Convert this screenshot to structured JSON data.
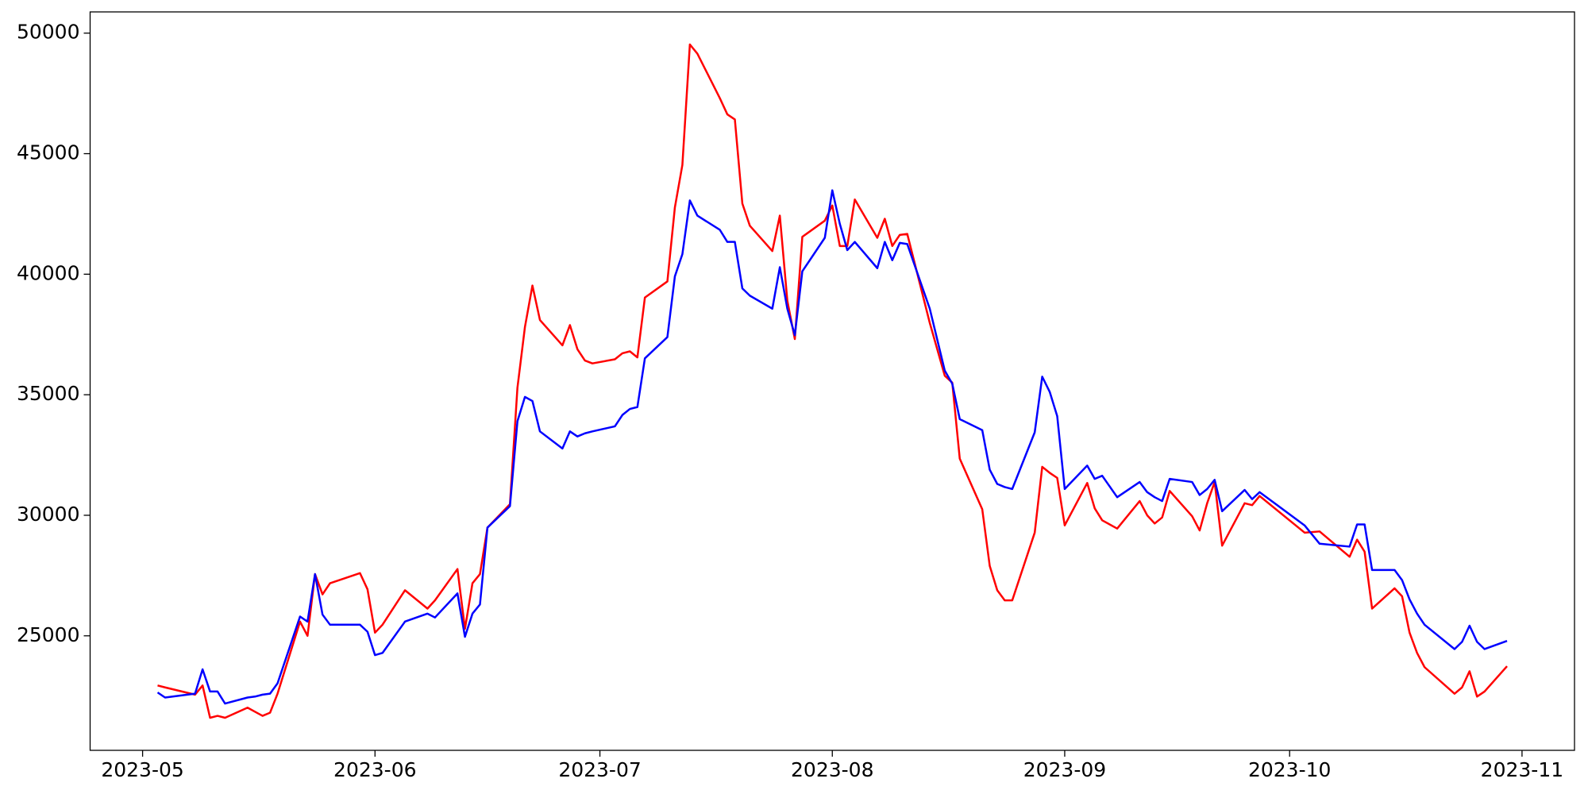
{
  "chart_data": {
    "type": "line",
    "x": [
      "2023-05-03",
      "2023-05-04",
      "2023-05-08",
      "2023-05-09",
      "2023-05-10",
      "2023-05-11",
      "2023-05-12",
      "2023-05-15",
      "2023-05-16",
      "2023-05-17",
      "2023-05-18",
      "2023-05-19",
      "2023-05-22",
      "2023-05-23",
      "2023-05-24",
      "2023-05-25",
      "2023-05-26",
      "2023-05-30",
      "2023-05-31",
      "2023-06-01",
      "2023-06-02",
      "2023-06-05",
      "2023-06-08",
      "2023-06-09",
      "2023-06-12",
      "2023-06-13",
      "2023-06-14",
      "2023-06-15",
      "2023-06-16",
      "2023-06-19",
      "2023-06-20",
      "2023-06-21",
      "2023-06-22",
      "2023-06-23",
      "2023-06-26",
      "2023-06-27",
      "2023-06-28",
      "2023-06-29",
      "2023-06-30",
      "2023-07-03",
      "2023-07-04",
      "2023-07-05",
      "2023-07-06",
      "2023-07-07",
      "2023-07-10",
      "2023-07-11",
      "2023-07-12",
      "2023-07-13",
      "2023-07-14",
      "2023-07-17",
      "2023-07-18",
      "2023-07-19",
      "2023-07-20",
      "2023-07-21",
      "2023-07-24",
      "2023-07-25",
      "2023-07-26",
      "2023-07-27",
      "2023-07-28",
      "2023-07-31",
      "2023-08-01",
      "2023-08-02",
      "2023-08-03",
      "2023-08-04",
      "2023-08-07",
      "2023-08-08",
      "2023-08-09",
      "2023-08-10",
      "2023-08-11",
      "2023-08-14",
      "2023-08-16",
      "2023-08-17",
      "2023-08-18",
      "2023-08-21",
      "2023-08-22",
      "2023-08-23",
      "2023-08-24",
      "2023-08-25",
      "2023-08-28",
      "2023-08-29",
      "2023-08-30",
      "2023-08-31",
      "2023-09-01",
      "2023-09-04",
      "2023-09-05",
      "2023-09-06",
      "2023-09-08",
      "2023-09-11",
      "2023-09-12",
      "2023-09-13",
      "2023-09-14",
      "2023-09-15",
      "2023-09-18",
      "2023-09-19",
      "2023-09-20",
      "2023-09-21",
      "2023-09-22",
      "2023-09-25",
      "2023-09-26",
      "2023-09-27",
      "2023-10-03",
      "2023-10-05",
      "2023-10-09",
      "2023-10-10",
      "2023-10-11",
      "2023-10-12",
      "2023-10-15",
      "2023-10-16",
      "2023-10-17",
      "2023-10-18",
      "2023-10-19",
      "2023-10-23",
      "2023-10-24",
      "2023-10-25",
      "2023-10-26",
      "2023-10-27",
      "2023-10-30"
    ],
    "series": [
      {
        "color": "#ff0000",
        "values": [
          22940,
          22860,
          22560,
          22940,
          21600,
          21680,
          21600,
          22020,
          21850,
          21680,
          21810,
          22600,
          25590,
          25000,
          27560,
          26720,
          27180,
          27600,
          26930,
          25130,
          25460,
          26890,
          26130,
          26470,
          27770,
          25290,
          27180,
          27560,
          29490,
          30460,
          35290,
          37810,
          39530,
          38100,
          37050,
          37890,
          36890,
          36420,
          36300,
          36470,
          36720,
          36800,
          36550,
          39030,
          39700,
          42770,
          44530,
          49530,
          49150,
          47300,
          46630,
          46420,
          42930,
          42010,
          40960,
          42430,
          38900,
          37310,
          41550,
          42220,
          42850,
          41170,
          41170,
          43100,
          41510,
          42300,
          41170,
          41630,
          41670,
          37980,
          35790,
          35500,
          32350,
          30250,
          27900,
          26890,
          26470,
          26470,
          29280,
          32010,
          31760,
          31550,
          29580,
          31340,
          30290,
          29790,
          29450,
          30590,
          30000,
          29660,
          29910,
          31010,
          29960,
          29370,
          30500,
          31380,
          28740,
          30500,
          30420,
          30800,
          29280,
          29330,
          28280,
          28990,
          28490,
          26130,
          26970,
          26640,
          25130,
          24290,
          23700,
          22600,
          22860,
          23530,
          22480,
          22690,
          23740
        ]
      },
      {
        "color": "#0000ff",
        "values": [
          22650,
          22440,
          22600,
          23610,
          22690,
          22690,
          22190,
          22440,
          22480,
          22560,
          22600,
          23030,
          25800,
          25590,
          27560,
          25880,
          25460,
          25460,
          25170,
          24200,
          24290,
          25590,
          25920,
          25760,
          26760,
          24960,
          25920,
          26300,
          29490,
          30380,
          33900,
          34910,
          34740,
          33480,
          32770,
          33480,
          33270,
          33400,
          33480,
          33690,
          34160,
          34410,
          34490,
          36510,
          37390,
          39910,
          40830,
          43060,
          42430,
          41840,
          41340,
          41340,
          39410,
          39110,
          38570,
          40290,
          38570,
          37470,
          40120,
          41510,
          43480,
          42090,
          41000,
          41340,
          40250,
          41340,
          40580,
          41300,
          41250,
          38570,
          36000,
          35460,
          33990,
          33530,
          31890,
          31300,
          31170,
          31090,
          33440,
          35750,
          35120,
          34110,
          31090,
          32060,
          31510,
          31640,
          30750,
          31380,
          30960,
          30750,
          30590,
          31510,
          31380,
          30840,
          31090,
          31470,
          30170,
          31050,
          30670,
          30960,
          29580,
          28820,
          28700,
          29620,
          29620,
          27730,
          27730,
          27310,
          26510,
          25920,
          25460,
          24450,
          24750,
          25420,
          24750,
          24450,
          24790
        ]
      }
    ],
    "xlim": [
      "2023-04-24",
      "2023-11-08"
    ],
    "xticks": [
      "2023-05",
      "2023-06",
      "2023-07",
      "2023-08",
      "2023-09",
      "2023-10",
      "2023-11"
    ],
    "ylim": [
      20250,
      50880
    ],
    "yticks": [
      25000,
      30000,
      35000,
      40000,
      45000,
      50000
    ],
    "grid": false
  }
}
